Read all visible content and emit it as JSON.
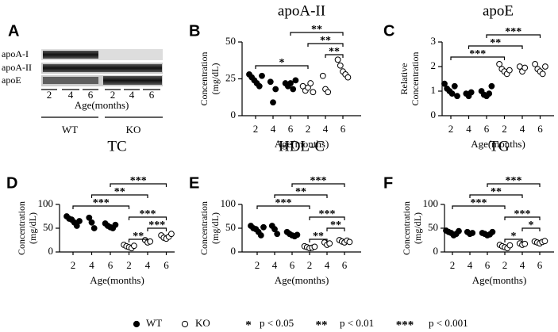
{
  "blot": {
    "panel": "A",
    "rows": [
      "apoA-I",
      "apoA-II",
      "apoE"
    ],
    "ages": [
      "2",
      "4",
      "6",
      "2",
      "4",
      "6"
    ],
    "xlabel": "Age(months)",
    "groups": [
      "WT",
      "KO"
    ]
  },
  "legend": {
    "series": [
      "WT",
      "KO"
    ],
    "significance": [
      {
        "symbol": "*",
        "label": "p < 0.05"
      },
      {
        "symbol": "**",
        "label": "p < 0.01"
      },
      {
        "symbol": "***",
        "label": "p < 0.001"
      }
    ]
  },
  "chart_data": [
    {
      "type": "scatter",
      "panel": "B",
      "title": "apoA-II",
      "ylabel": [
        "Concentration",
        "(mg/dL)"
      ],
      "xlabel": "Age(months)",
      "categories": [
        "2",
        "4",
        "6",
        "2",
        "4",
        "6"
      ],
      "ylim": [
        0,
        50
      ],
      "yticks": [
        0,
        25,
        50
      ],
      "series": [
        {
          "color": "#000000",
          "edgecolor": "#000000",
          "values": [
            [
              28,
              26,
              24,
              22,
              20,
              27
            ],
            [
              23,
              9,
              18
            ],
            [
              22,
              20,
              22,
              18,
              24
            ],
            null,
            null,
            null
          ]
        },
        {
          "color": "#ffffff",
          "edgecolor": "#000000",
          "values": [
            null,
            null,
            null,
            [
              20,
              17,
              19,
              22,
              16
            ],
            [
              27,
              18,
              16
            ],
            [
              38,
              34,
              30,
              28,
              26
            ]
          ]
        }
      ],
      "brackets": [
        {
          "from": 2,
          "to": 5,
          "label": "**"
        },
        {
          "from": 3,
          "to": 5,
          "label": "**"
        },
        {
          "from": 4,
          "to": 5,
          "label": "**"
        },
        {
          "from": 0,
          "to": 3,
          "label": "*"
        }
      ]
    },
    {
      "type": "scatter",
      "panel": "C",
      "title": "apoE",
      "ylabel": [
        "Relative",
        "Concentration"
      ],
      "xlabel": "Age(months)",
      "categories": [
        "2",
        "4",
        "6",
        "2",
        "4",
        "6"
      ],
      "ylim": [
        0,
        3
      ],
      "yticks": [
        0,
        1,
        2,
        3
      ],
      "series": [
        {
          "color": "#000000",
          "edgecolor": "#000000",
          "values": [
            [
              1.3,
              1.1,
              1.0,
              0.9,
              1.2,
              0.8
            ],
            [
              0.9,
              0.8,
              0.95
            ],
            [
              1.0,
              0.85,
              0.8,
              0.9,
              1.2
            ],
            null,
            null,
            null
          ]
        },
        {
          "color": "#ffffff",
          "edgecolor": "#000000",
          "values": [
            null,
            null,
            null,
            [
              2.1,
              1.9,
              1.8,
              1.7,
              1.85
            ],
            [
              2.0,
              1.8,
              1.95
            ],
            [
              2.1,
              1.9,
              1.8,
              1.7,
              2.0
            ]
          ]
        }
      ],
      "brackets": [
        {
          "from": 2,
          "to": 5,
          "label": "***"
        },
        {
          "from": 1,
          "to": 4,
          "label": "**"
        },
        {
          "from": 0,
          "to": 3,
          "label": "***"
        }
      ]
    },
    {
      "type": "scatter",
      "panel": "D",
      "title": "TC",
      "ylabel": [
        "Concentration",
        "(mg/dL)"
      ],
      "xlabel": "Age(months)",
      "categories": [
        "2",
        "4",
        "6",
        "2",
        "4",
        "6"
      ],
      "ylim": [
        0,
        100
      ],
      "yticks": [
        0,
        50,
        100
      ],
      "series": [
        {
          "color": "#000000",
          "edgecolor": "#000000",
          "values": [
            [
              75,
              70,
              68,
              62,
              55,
              65
            ],
            [
              72,
              62,
              50
            ],
            [
              60,
              55,
              52,
              50,
              57
            ],
            null,
            null,
            null
          ]
        },
        {
          "color": "#ffffff",
          "edgecolor": "#000000",
          "values": [
            null,
            null,
            null,
            [
              15,
              12,
              10,
              8,
              13
            ],
            [
              25,
              20,
              22
            ],
            [
              35,
              30,
              28,
              32,
              38
            ]
          ]
        }
      ],
      "brackets": [
        {
          "from": 2,
          "to": 5,
          "label": "***"
        },
        {
          "from": 1,
          "to": 4,
          "label": "**"
        },
        {
          "from": 0,
          "to": 3,
          "label": "***"
        },
        {
          "from": 3,
          "to": 5,
          "label": "***"
        },
        {
          "from": 4,
          "to": 5,
          "label": "***"
        },
        {
          "from": 3,
          "to": 4,
          "label": "**"
        }
      ]
    },
    {
      "type": "scatter",
      "panel": "E",
      "title": "HDL-C",
      "ylabel": [
        "Concentration",
        "(mg/dL)"
      ],
      "xlabel": "Age(months)",
      "categories": [
        "2",
        "4",
        "6",
        "2",
        "4",
        "6"
      ],
      "ylim": [
        0,
        100
      ],
      "yticks": [
        0,
        50,
        100
      ],
      "series": [
        {
          "color": "#000000",
          "edgecolor": "#000000",
          "values": [
            [
              55,
              50,
              48,
              42,
              35,
              52
            ],
            [
              55,
              48,
              38
            ],
            [
              42,
              38,
              35,
              33,
              36
            ],
            null,
            null,
            null
          ]
        },
        {
          "color": "#ffffff",
          "edgecolor": "#000000",
          "values": [
            null,
            null,
            null,
            [
              12,
              10,
              8,
              9,
              11
            ],
            [
              20,
              15,
              18
            ],
            [
              25,
              22,
              20,
              24,
              21
            ]
          ]
        }
      ],
      "brackets": [
        {
          "from": 2,
          "to": 5,
          "label": "***"
        },
        {
          "from": 1,
          "to": 4,
          "label": "**"
        },
        {
          "from": 0,
          "to": 3,
          "label": "***"
        },
        {
          "from": 3,
          "to": 5,
          "label": "***"
        },
        {
          "from": 4,
          "to": 5,
          "label": "**"
        },
        {
          "from": 3,
          "to": 4,
          "label": "**"
        }
      ]
    },
    {
      "type": "scatter",
      "panel": "F",
      "title": "TG",
      "ylabel": [
        "Concentration",
        "(mg/dL)"
      ],
      "xlabel": "Age(months)",
      "categories": [
        "2",
        "4",
        "6",
        "2",
        "4",
        "6"
      ],
      "ylim": [
        0,
        100
      ],
      "yticks": [
        0,
        50,
        100
      ],
      "series": [
        {
          "color": "#000000",
          "edgecolor": "#000000",
          "values": [
            [
              45,
              42,
              40,
              35,
              38,
              44
            ],
            [
              42,
              38,
              40
            ],
            [
              40,
              38,
              35,
              37,
              42
            ],
            null,
            null,
            null
          ]
        },
        {
          "color": "#ffffff",
          "edgecolor": "#000000",
          "values": [
            null,
            null,
            null,
            [
              15,
              12,
              10,
              8,
              14
            ],
            [
              18,
              15,
              17
            ],
            [
              22,
              20,
              18,
              21,
              23
            ]
          ]
        }
      ],
      "brackets": [
        {
          "from": 2,
          "to": 5,
          "label": "***"
        },
        {
          "from": 1,
          "to": 4,
          "label": "**"
        },
        {
          "from": 0,
          "to": 3,
          "label": "***"
        },
        {
          "from": 3,
          "to": 5,
          "label": "***"
        },
        {
          "from": 4,
          "to": 5,
          "label": "*"
        },
        {
          "from": 3,
          "to": 4,
          "label": "*"
        }
      ]
    }
  ]
}
